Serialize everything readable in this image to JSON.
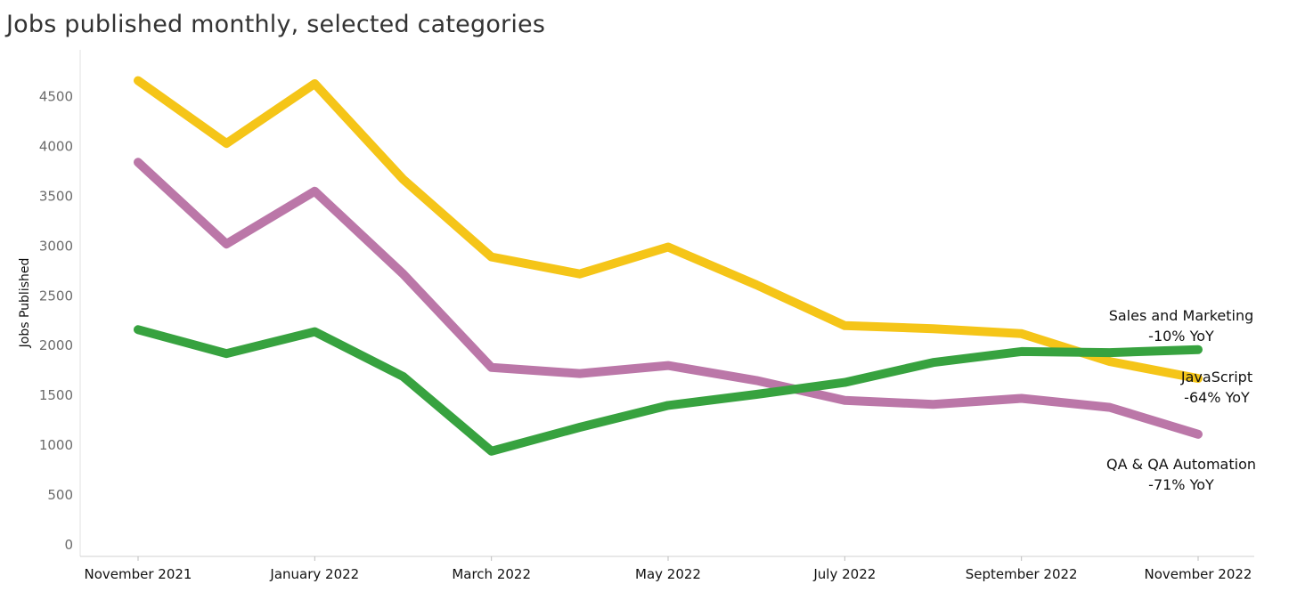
{
  "chart_data": {
    "type": "line",
    "title": "Jobs published monthly, selected categories",
    "ylabel": "Jobs Published",
    "xlabel": "",
    "ylim": [
      0,
      4800
    ],
    "yticks": [
      0,
      500,
      1000,
      1500,
      2000,
      2500,
      3000,
      3500,
      4000,
      4500
    ],
    "x": [
      "2021-11",
      "2021-12",
      "2022-01",
      "2022-02",
      "2022-03",
      "2022-04",
      "2022-05",
      "2022-06",
      "2022-07",
      "2022-08",
      "2022-09",
      "2022-10",
      "2022-11"
    ],
    "xticks": [
      {
        "index": 0,
        "label": "November 2021"
      },
      {
        "index": 2,
        "label": "January 2022"
      },
      {
        "index": 4,
        "label": "March 2022"
      },
      {
        "index": 6,
        "label": "May 2022"
      },
      {
        "index": 8,
        "label": "July 2022"
      },
      {
        "index": 10,
        "label": "September 2022"
      },
      {
        "index": 12,
        "label": "November 2022"
      }
    ],
    "grid": false,
    "series": [
      {
        "name": "JavaScript",
        "color": "#F5C518",
        "values": [
          4660,
          4030,
          4630,
          3670,
          2890,
          2720,
          2990,
          2610,
          2200,
          2170,
          2120,
          1840,
          1670
        ],
        "label_lines": [
          "JavaScript",
          "-64% YoY"
        ]
      },
      {
        "name": "QA & QA Automation",
        "color": "#BB77A8",
        "values": [
          3840,
          3020,
          3550,
          2720,
          1780,
          1720,
          1800,
          1650,
          1450,
          1410,
          1470,
          1380,
          1110
        ],
        "label_lines": [
          "QA & QA Automation",
          "-71% YoY"
        ]
      },
      {
        "name": "Sales and Marketing",
        "color": "#37A23F",
        "values": [
          2160,
          1920,
          2140,
          1690,
          940,
          1180,
          1400,
          1510,
          1630,
          1830,
          1940,
          1930,
          1960
        ],
        "label_lines": [
          "Sales and Marketing",
          "-10% YoY"
        ]
      }
    ]
  }
}
